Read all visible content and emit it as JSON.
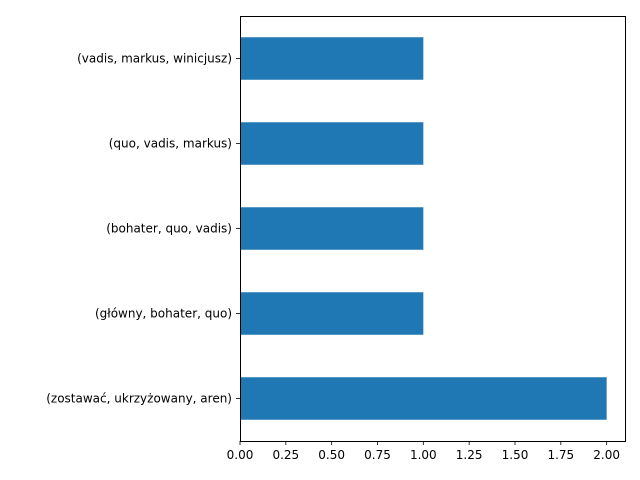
{
  "chart_data": {
    "type": "bar",
    "orientation": "horizontal",
    "categories": [
      "(vadis, markus, winicjusz)",
      "(quo, vadis, markus)",
      "(bohater, quo, vadis)",
      "(główny, bohater, quo)",
      "(zostawać, ukrzyżowany, aren)"
    ],
    "values": [
      1,
      1,
      1,
      1,
      2
    ],
    "title": "",
    "xlabel": "",
    "ylabel": "",
    "xlim": [
      0,
      2.1
    ],
    "xticks": [
      "0.00",
      "0.25",
      "0.50",
      "0.75",
      "1.00",
      "1.25",
      "1.50",
      "1.75",
      "2.00"
    ],
    "grid": false,
    "legend": "none",
    "bar_color": "#1f77b4"
  }
}
